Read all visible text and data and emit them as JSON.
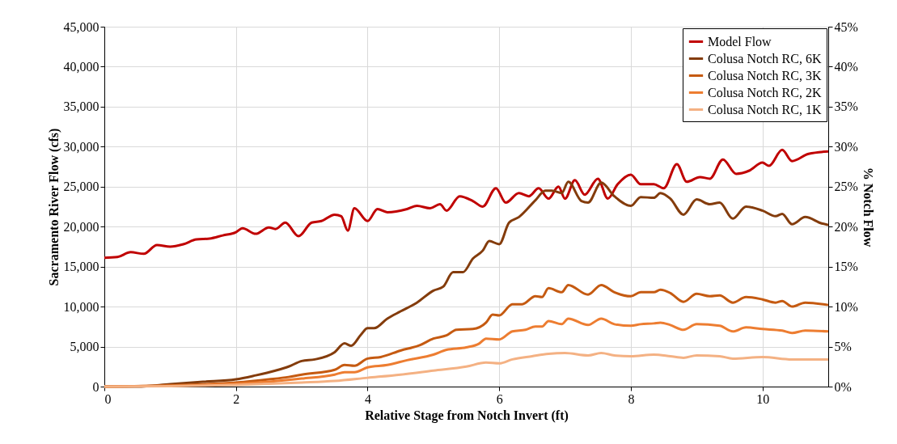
{
  "chart_data": {
    "type": "line",
    "xlabel": "Relative Stage from Notch Invert (ft)",
    "ylabel": "Sacramento River Flow (cfs)",
    "y2label": "% Notch Flow",
    "xlim": [
      0,
      11
    ],
    "xticks": [
      0,
      2,
      4,
      6,
      8,
      10
    ],
    "ylim": [
      0,
      45000
    ],
    "yticks": [
      {
        "value": 0,
        "label": "0"
      },
      {
        "value": 5000,
        "label": "5,000"
      },
      {
        "value": 10000,
        "label": "10,000"
      },
      {
        "value": 15000,
        "label": "15,000"
      },
      {
        "value": 20000,
        "label": "20,000"
      },
      {
        "value": 25000,
        "label": "25,000"
      },
      {
        "value": 30000,
        "label": "30,000"
      },
      {
        "value": 35000,
        "label": "35,000"
      },
      {
        "value": 40000,
        "label": "40,000"
      },
      {
        "value": 45000,
        "label": "45,000"
      }
    ],
    "y2lim": [
      0,
      45
    ],
    "y2ticks": [
      {
        "value": 0,
        "label": "0%"
      },
      {
        "value": 5,
        "label": "5%"
      },
      {
        "value": 10,
        "label": "10%"
      },
      {
        "value": 15,
        "label": "15%"
      },
      {
        "value": 20,
        "label": "20%"
      },
      {
        "value": 25,
        "label": "25%"
      },
      {
        "value": 30,
        "label": "30%"
      },
      {
        "value": 35,
        "label": "35%"
      },
      {
        "value": 40,
        "label": "40%"
      },
      {
        "value": 45,
        "label": "45%"
      }
    ],
    "grid": true,
    "legend": "top right",
    "marker": "none",
    "line_style": "solid",
    "series": [
      {
        "name": "Model Flow",
        "color": "#c00000",
        "x": [
          0,
          0.2,
          0.4,
          0.6,
          0.8,
          1.0,
          1.2,
          1.4,
          1.6,
          1.8,
          2.0,
          2.1,
          2.3,
          2.5,
          2.6,
          2.75,
          2.95,
          3.15,
          3.3,
          3.5,
          3.6,
          3.7,
          3.8,
          4.0,
          4.15,
          4.3,
          4.6,
          4.75,
          4.95,
          5.1,
          5.2,
          5.4,
          5.6,
          5.75,
          5.95,
          6.1,
          6.3,
          6.45,
          6.6,
          6.75,
          6.9,
          7.0,
          7.15,
          7.3,
          7.5,
          7.65,
          7.8,
          8.0,
          8.15,
          8.35,
          8.5,
          8.7,
          8.85,
          9.05,
          9.2,
          9.4,
          9.6,
          9.8,
          10.0,
          10.1,
          10.3,
          10.45,
          10.7,
          11.0
        ],
        "values": [
          16100,
          16200,
          16800,
          16600,
          17700,
          17500,
          17800,
          18400,
          18500,
          18900,
          19300,
          19800,
          19100,
          19900,
          19700,
          20500,
          18800,
          20500,
          20700,
          21500,
          21300,
          19500,
          22300,
          20700,
          22200,
          21800,
          22200,
          22600,
          22300,
          22800,
          22000,
          23800,
          23200,
          22500,
          24800,
          23000,
          24200,
          23800,
          24800,
          23500,
          25000,
          23500,
          25800,
          24000,
          26000,
          23500,
          25300,
          26500,
          25300,
          25300,
          24800,
          27800,
          25600,
          26200,
          26000,
          28400,
          26600,
          27000,
          28000,
          27600,
          29600,
          28200,
          29100,
          29400
        ]
      },
      {
        "name": "Colusa Notch RC, 6K",
        "color": "#843c0c",
        "axis": "y2",
        "x": [
          0,
          0.5,
          1,
          1.5,
          2,
          2.3,
          2.6,
          2.8,
          3.0,
          3.2,
          3.5,
          3.65,
          3.75,
          3.9,
          4.0,
          4.1,
          4.3,
          4.5,
          4.75,
          5.0,
          5.15,
          5.3,
          5.45,
          5.6,
          5.75,
          5.85,
          6.0,
          6.15,
          6.3,
          6.55,
          6.7,
          6.8,
          6.95,
          7.05,
          7.25,
          7.35,
          7.55,
          7.75,
          8.0,
          8.15,
          8.35,
          8.45,
          8.6,
          8.8,
          9.0,
          9.2,
          9.35,
          9.55,
          9.75,
          10.0,
          10.2,
          10.3,
          10.45,
          10.65,
          10.9,
          11.0
        ],
        "values": [
          0,
          0,
          0.3,
          0.6,
          0.9,
          1.4,
          2.0,
          2.5,
          3.2,
          3.4,
          4.3,
          5.4,
          5.1,
          6.5,
          7.3,
          7.3,
          8.5,
          9.4,
          10.5,
          12.0,
          12.5,
          14.3,
          14.3,
          16.0,
          17.0,
          18.2,
          17.8,
          20.5,
          21.2,
          23.3,
          24.5,
          24.5,
          24.2,
          25.6,
          23.2,
          23.0,
          25.5,
          23.8,
          22.6,
          23.7,
          23.6,
          24.2,
          23.5,
          21.5,
          23.4,
          22.8,
          23.0,
          21.0,
          22.5,
          22.0,
          21.3,
          21.6,
          20.3,
          21.2,
          20.4,
          20.2
        ]
      },
      {
        "name": "Colusa Notch RC, 3K",
        "color": "#c55a11",
        "axis": "y2",
        "x": [
          0,
          1,
          2,
          2.5,
          2.8,
          3.0,
          3.5,
          3.65,
          3.8,
          4.0,
          4.2,
          4.5,
          4.8,
          5.0,
          5.2,
          5.35,
          5.6,
          5.8,
          5.9,
          6.0,
          6.2,
          6.35,
          6.55,
          6.65,
          6.75,
          6.95,
          7.05,
          7.35,
          7.55,
          7.75,
          8.0,
          8.15,
          8.35,
          8.45,
          8.6,
          8.8,
          9.0,
          9.2,
          9.35,
          9.55,
          9.75,
          10.0,
          10.2,
          10.3,
          10.45,
          10.65,
          11.0
        ],
        "values": [
          0,
          0.15,
          0.5,
          0.9,
          1.2,
          1.5,
          2.1,
          2.7,
          2.6,
          3.5,
          3.7,
          4.5,
          5.2,
          6.0,
          6.4,
          7.1,
          7.2,
          8.0,
          9.0,
          8.9,
          10.3,
          10.3,
          11.3,
          11.2,
          12.3,
          11.8,
          12.7,
          11.5,
          12.7,
          11.8,
          11.3,
          11.8,
          11.8,
          12.1,
          11.7,
          10.6,
          11.6,
          11.3,
          11.4,
          10.5,
          11.2,
          10.9,
          10.5,
          10.7,
          10.0,
          10.5,
          10.2
        ]
      },
      {
        "name": "Colusa Notch RC, 2K",
        "color": "#ed7d31",
        "axis": "y2",
        "x": [
          0,
          1,
          2,
          2.5,
          3.0,
          3.5,
          3.65,
          3.8,
          4.0,
          4.3,
          4.6,
          5.0,
          5.2,
          5.5,
          5.7,
          5.8,
          6.0,
          6.2,
          6.4,
          6.55,
          6.65,
          6.75,
          6.95,
          7.05,
          7.35,
          7.55,
          7.75,
          8.0,
          8.15,
          8.35,
          8.45,
          8.6,
          8.8,
          9.0,
          9.35,
          9.55,
          9.75,
          10.0,
          10.3,
          10.45,
          10.65,
          11.0
        ],
        "values": [
          0,
          0.1,
          0.35,
          0.6,
          1.0,
          1.5,
          1.8,
          1.8,
          2.4,
          2.7,
          3.3,
          4.0,
          4.6,
          4.9,
          5.4,
          6.0,
          5.9,
          6.9,
          7.1,
          7.5,
          7.5,
          8.2,
          7.8,
          8.5,
          7.7,
          8.5,
          7.8,
          7.6,
          7.8,
          7.9,
          8.0,
          7.7,
          7.1,
          7.8,
          7.6,
          6.9,
          7.4,
          7.2,
          7.0,
          6.7,
          7.0,
          6.9
        ]
      },
      {
        "name": "Colusa Notch RC, 1K",
        "color": "#f4b183",
        "axis": "y2",
        "x": [
          0,
          1,
          2,
          3,
          3.5,
          4,
          4.5,
          5,
          5.5,
          5.8,
          6.0,
          6.2,
          6.5,
          6.75,
          7.0,
          7.35,
          7.55,
          7.75,
          8.0,
          8.35,
          8.6,
          8.8,
          9.0,
          9.35,
          9.55,
          10.0,
          10.45,
          11.0
        ],
        "values": [
          0,
          0.05,
          0.2,
          0.5,
          0.7,
          1.1,
          1.5,
          2.0,
          2.5,
          3.0,
          2.9,
          3.4,
          3.8,
          4.1,
          4.2,
          3.9,
          4.2,
          3.9,
          3.8,
          4.0,
          3.8,
          3.6,
          3.9,
          3.8,
          3.5,
          3.7,
          3.4,
          3.4
        ]
      }
    ]
  }
}
